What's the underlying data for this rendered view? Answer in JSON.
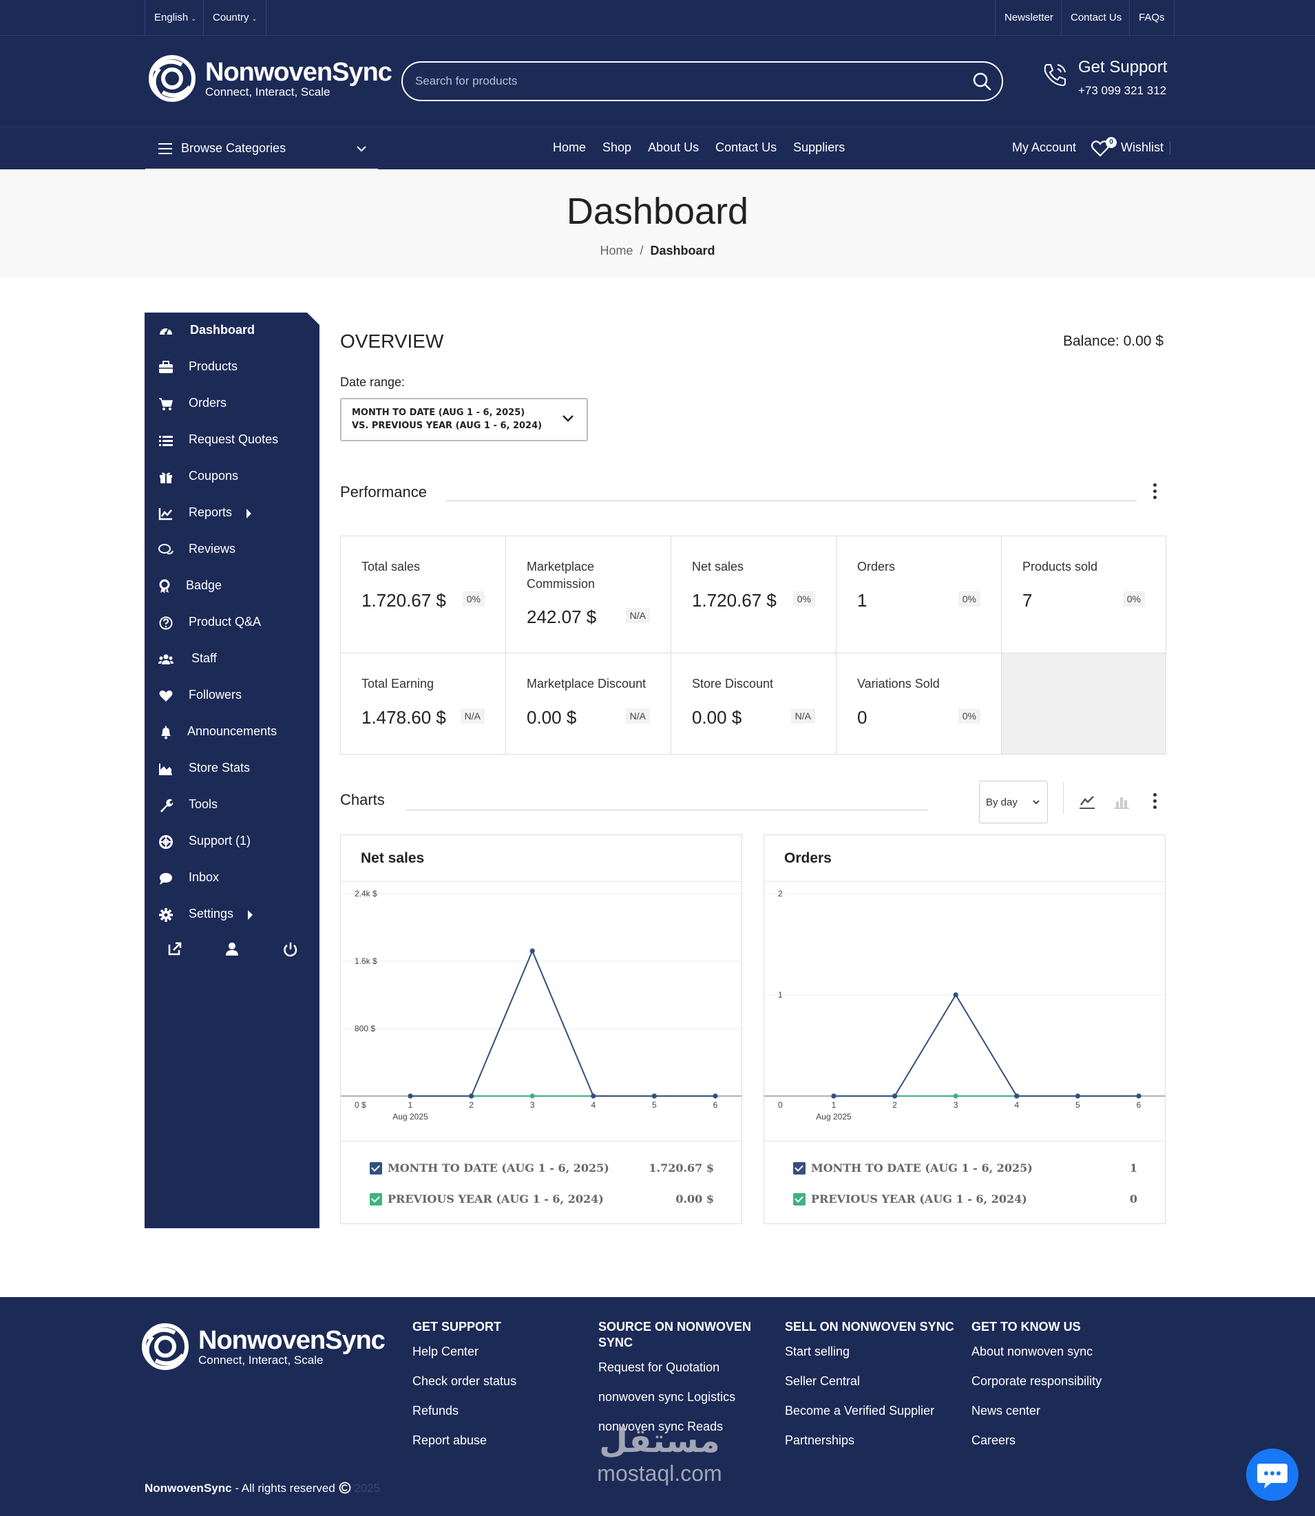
{
  "topbar": {
    "language": "English",
    "country": "Country",
    "newsletter": "Newsletter",
    "contact": "Contact Us",
    "faqs": "FAQs"
  },
  "brand": {
    "name": "NonwovenSync",
    "tagline": "Connect, Interact, Scale"
  },
  "search": {
    "placeholder": "Search for products"
  },
  "support": {
    "title": "Get Support",
    "phone": "+73 099 321 312"
  },
  "nav": {
    "browse": "Browse Categories",
    "links": [
      "Home",
      "Shop",
      "About Us",
      "Contact Us",
      "Suppliers"
    ],
    "account": "My Account",
    "wishlist": "Wishlist",
    "wishlist_count": "0"
  },
  "page": {
    "title": "Dashboard",
    "breadcrumb_home": "Home",
    "breadcrumb_current": "Dashboard"
  },
  "sidebar": {
    "items": [
      {
        "label": "Dashboard",
        "icon": "dashboard-icon"
      },
      {
        "label": "Products",
        "icon": "briefcase-icon"
      },
      {
        "label": "Orders",
        "icon": "cart-icon"
      },
      {
        "label": "Request Quotes",
        "icon": "list-icon"
      },
      {
        "label": "Coupons",
        "icon": "gift-icon"
      },
      {
        "label": "Reports",
        "icon": "chart-line-icon"
      },
      {
        "label": "Reviews",
        "icon": "comments-icon"
      },
      {
        "label": "Badge",
        "icon": "award-icon"
      },
      {
        "label": "Product Q&A",
        "icon": "question-icon"
      },
      {
        "label": "Staff",
        "icon": "users-icon"
      },
      {
        "label": "Followers",
        "icon": "heart-icon"
      },
      {
        "label": "Announcements",
        "icon": "bell-icon"
      },
      {
        "label": "Store Stats",
        "icon": "area-chart-icon"
      },
      {
        "label": "Tools",
        "icon": "wrench-icon"
      },
      {
        "label": "Support (1)",
        "icon": "lifebuoy-icon"
      },
      {
        "label": "Inbox",
        "icon": "comment-icon"
      },
      {
        "label": "Settings",
        "icon": "gear-icon"
      }
    ]
  },
  "overview": {
    "title": "OVERVIEW",
    "balance_label": "Balance:",
    "balance_value": "0.00 $",
    "date_range_label": "Date range:",
    "date_range_line1": "MONTH TO DATE (AUG 1 - 6, 2025)",
    "date_range_line2": "VS. PREVIOUS YEAR (AUG 1 - 6, 2024)"
  },
  "performance": {
    "title": "Performance",
    "cards": [
      {
        "title": "Total sales",
        "value": "1.720.67 $",
        "change": "0%"
      },
      {
        "title": "Marketplace Commission",
        "value": "242.07 $",
        "change": "N/A"
      },
      {
        "title": "Net sales",
        "value": "1.720.67 $",
        "change": "0%"
      },
      {
        "title": "Orders",
        "value": "1",
        "change": "0%"
      },
      {
        "title": "Products sold",
        "value": "7",
        "change": "0%"
      },
      {
        "title": "Total Earning",
        "value": "1.478.60 $",
        "change": "N/A"
      },
      {
        "title": "Marketplace Discount",
        "value": "0.00 $",
        "change": "N/A"
      },
      {
        "title": "Store Discount",
        "value": "0.00 $",
        "change": "N/A"
      },
      {
        "title": "Variations Sold",
        "value": "0",
        "change": "0%"
      }
    ]
  },
  "charts_section": {
    "title": "Charts",
    "interval": "By day"
  },
  "chart_data": [
    {
      "type": "line",
      "title": "Net sales",
      "x": [
        1,
        2,
        3,
        4,
        5,
        6
      ],
      "x_sublabel": "Aug 2025",
      "yticks": [
        "0 $",
        "800 $",
        "1.6k $",
        "2.4k $"
      ],
      "ylim": [
        0,
        2400
      ],
      "series": [
        {
          "name": "MONTH TO DATE (AUG 1 - 6, 2025)",
          "total": "1.720.67 $",
          "values": [
            0,
            0,
            1720.67,
            0,
            0,
            0
          ],
          "color": "#34507c"
        },
        {
          "name": "PREVIOUS YEAR (AUG 1 - 6, 2024)",
          "total": "0.00 $",
          "values": [
            0,
            0,
            0,
            0,
            0,
            0
          ],
          "color": "#3fb27f"
        }
      ]
    },
    {
      "type": "line",
      "title": "Orders",
      "x": [
        1,
        2,
        3,
        4,
        5,
        6
      ],
      "x_sublabel": "Aug 2025",
      "yticks": [
        "0",
        "1",
        "2"
      ],
      "ylim": [
        0,
        2
      ],
      "series": [
        {
          "name": "MONTH TO DATE (AUG 1 - 6, 2025)",
          "total": "1",
          "values": [
            0,
            0,
            1,
            0,
            0,
            0
          ],
          "color": "#34507c"
        },
        {
          "name": "PREVIOUS YEAR (AUG 1 - 6, 2024)",
          "total": "0",
          "values": [
            0,
            0,
            0,
            0,
            0,
            0
          ],
          "color": "#3fb27f"
        }
      ]
    }
  ],
  "footer": {
    "columns": [
      {
        "title": "GET SUPPORT",
        "links": [
          "Help Center",
          "Check order status",
          "Refunds",
          "Report abuse"
        ]
      },
      {
        "title": "SOURCE ON NONWOVEN SYNC",
        "links": [
          "Request for Quotation",
          "nonwoven sync Logistics",
          "nonwoven sync Reads"
        ]
      },
      {
        "title": "SELL ON NONWOVEN SYNC",
        "links": [
          "Start selling",
          "Seller Central",
          "Become a Verified Supplier",
          "Partnerships"
        ]
      },
      {
        "title": "GET TO KNOW US",
        "links": [
          "About nonwoven sync",
          "Corporate responsibility",
          "News center",
          "Careers"
        ]
      }
    ],
    "copyright_brand": "NonwovenSync",
    "copyright_text": " - All rights reserved ",
    "copyright_year": "2025"
  },
  "watermark": {
    "arabic": "مستقل",
    "latin": "mostaql.com"
  }
}
